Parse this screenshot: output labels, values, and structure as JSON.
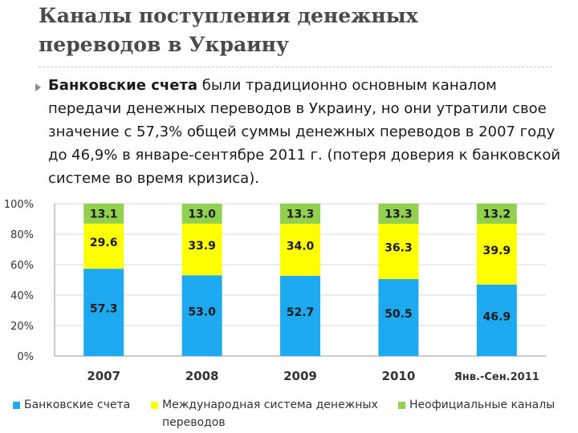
{
  "slide": {
    "title": "Каналы поступления денежных\nпереводов в Украину",
    "paragraph": {
      "bold_lead": "Банковские счета",
      "text": " были традиционно основным каналом передачи денежных переводов в Украину, но они утратили свое значение с 57,3% общей суммы денежных переводов в 2007 году до 46,9% в январе-сентябре 2011 г. (потеря доверия к банковской системе во время кризиса)."
    }
  },
  "chart_data": {
    "type": "bar",
    "stacked": true,
    "categories": [
      "2007",
      "2008",
      "2009",
      "2010",
      "Янв.-Сен.2011"
    ],
    "series": [
      {
        "name": "Банковские счета",
        "color": "#1eaaf1",
        "values": [
          57.3,
          53.0,
          52.7,
          50.5,
          46.9
        ],
        "labels": [
          "57.3",
          "53.0",
          "52.7",
          "50.5",
          "46.9"
        ]
      },
      {
        "name": "Международная система денежных переводов",
        "color": "#ffff00",
        "values": [
          29.6,
          33.9,
          34.0,
          36.3,
          39.9
        ],
        "labels": [
          "29.6",
          "33.9",
          "34.0",
          "36.3",
          "39.9"
        ]
      },
      {
        "name": "Неофициальные каналы",
        "color": "#92d050",
        "values": [
          13.1,
          13.0,
          13.3,
          13.3,
          13.2
        ],
        "labels": [
          "13.1",
          "13.0",
          "13.3",
          "13.3",
          "13.2"
        ]
      }
    ],
    "yticks": [
      "0%",
      "20%",
      "40%",
      "60%",
      "80%",
      "100%"
    ],
    "ylim": [
      0,
      100
    ],
    "grid": true,
    "legend": "bottom"
  }
}
